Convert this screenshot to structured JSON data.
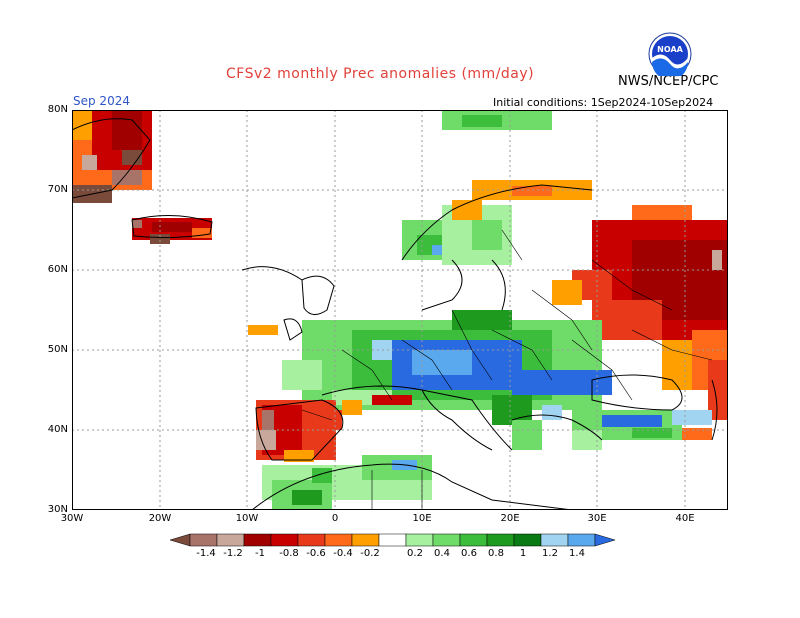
{
  "title": "CFSv2 monthly Prec anomalies (mm/day)",
  "month": "Sep 2024",
  "initial_conditions": "Initial conditions: 1Sep2024-10Sep2024",
  "agency": "NWS/NCEP/CPC",
  "logo_text": "NOAA",
  "colors": {
    "title": "#e0413a",
    "month": "#2f56c8",
    "scale": [
      "#7a4b3a",
      "#a8746a",
      "#c9a89c",
      "#a00000",
      "#c80000",
      "#e83a1a",
      "#ff6a1a",
      "#ffa000",
      "#ffffff",
      "#a6f0a0",
      "#6fdc6a",
      "#3cbe3c",
      "#1e9a1e",
      "#0a7a14",
      "#a0d4f0",
      "#5aa8ee",
      "#2a6ae0"
    ]
  },
  "map": {
    "lat_labels": [
      "80N",
      "70N",
      "60N",
      "50N",
      "40N",
      "30N"
    ],
    "lon_labels": [
      "30W",
      "20W",
      "10W",
      "0",
      "10E",
      "20E",
      "30E",
      "40E"
    ]
  },
  "colorbar": {
    "labels": [
      "-1.4",
      "-1.2",
      "-1",
      "-0.8",
      "-0.6",
      "-0.4",
      "-0.2",
      "0.2",
      "0.4",
      "0.6",
      "0.8",
      "1",
      "1.2",
      "1.4"
    ]
  }
}
